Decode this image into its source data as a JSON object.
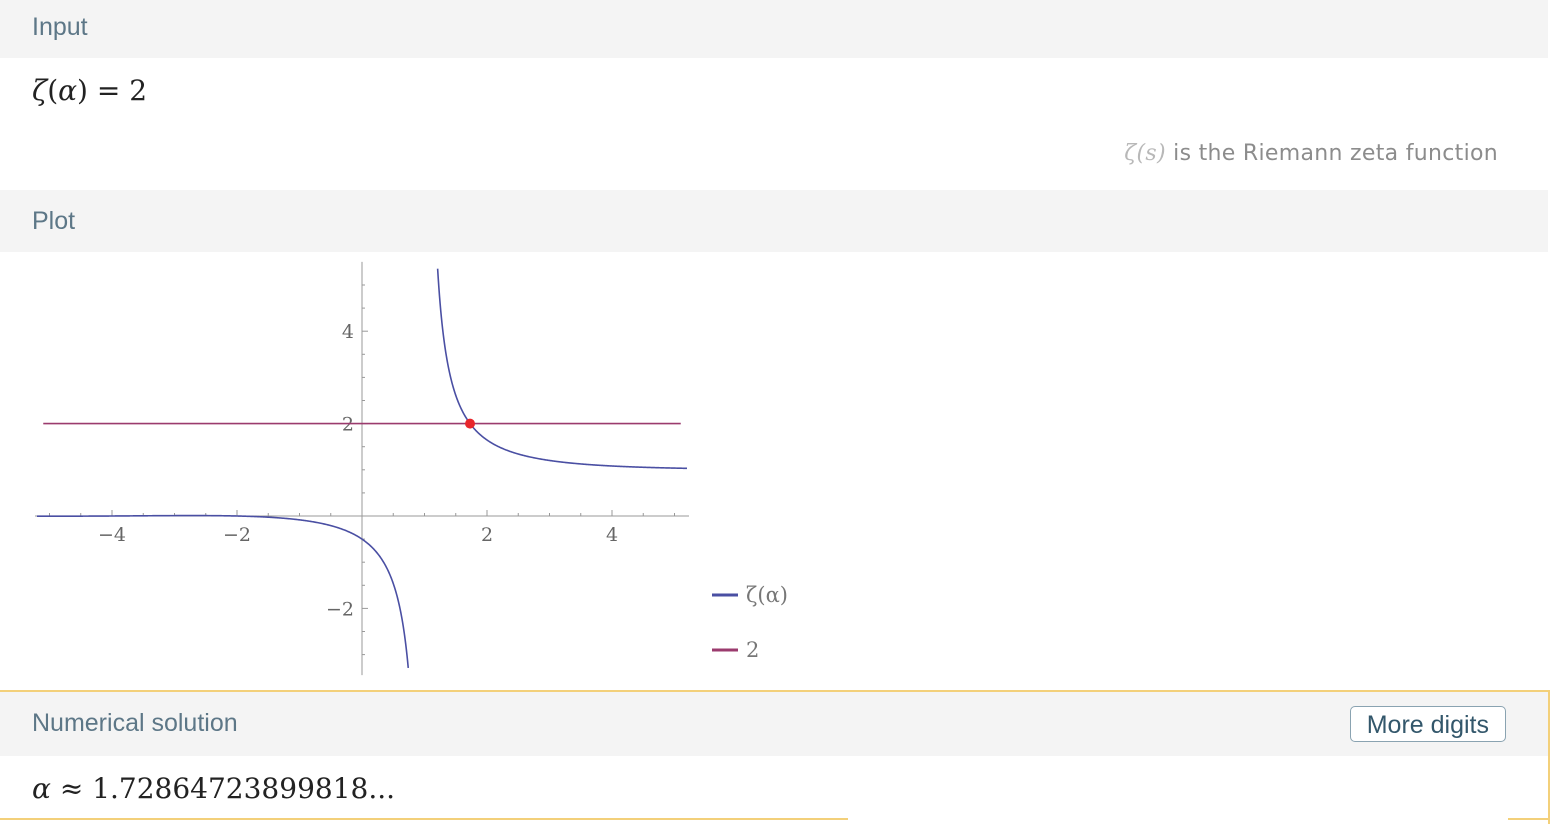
{
  "input": {
    "title": "Input",
    "lhs_func": "ζ",
    "lhs_var": "α",
    "rhs": "2",
    "note_symbol": "ζ(s)",
    "note_text": " is the Riemann zeta function"
  },
  "plot": {
    "title": "Plot"
  },
  "solution": {
    "title": "Numerical solution",
    "more_digits_label": "More digits",
    "var": "α",
    "approx": "≈",
    "value": "1.72864723899818..."
  },
  "chart_data": {
    "type": "line",
    "xlim": [
      -5.2,
      5.2
    ],
    "ylim": [
      -3.4,
      5.5
    ],
    "x_ticks": [
      -4,
      -2,
      2,
      4
    ],
    "y_ticks": [
      4,
      2,
      -2
    ],
    "grid": false,
    "legend_position": "bottom-right",
    "series": [
      {
        "name": "ζ(α)",
        "color": "#4a4fa3",
        "function": "zeta"
      },
      {
        "name": "2",
        "color": "#9b3b6e",
        "function": "constant",
        "value": 2
      }
    ],
    "intersection": {
      "x": 1.7286,
      "y": 2,
      "color": "#e8262b"
    }
  }
}
